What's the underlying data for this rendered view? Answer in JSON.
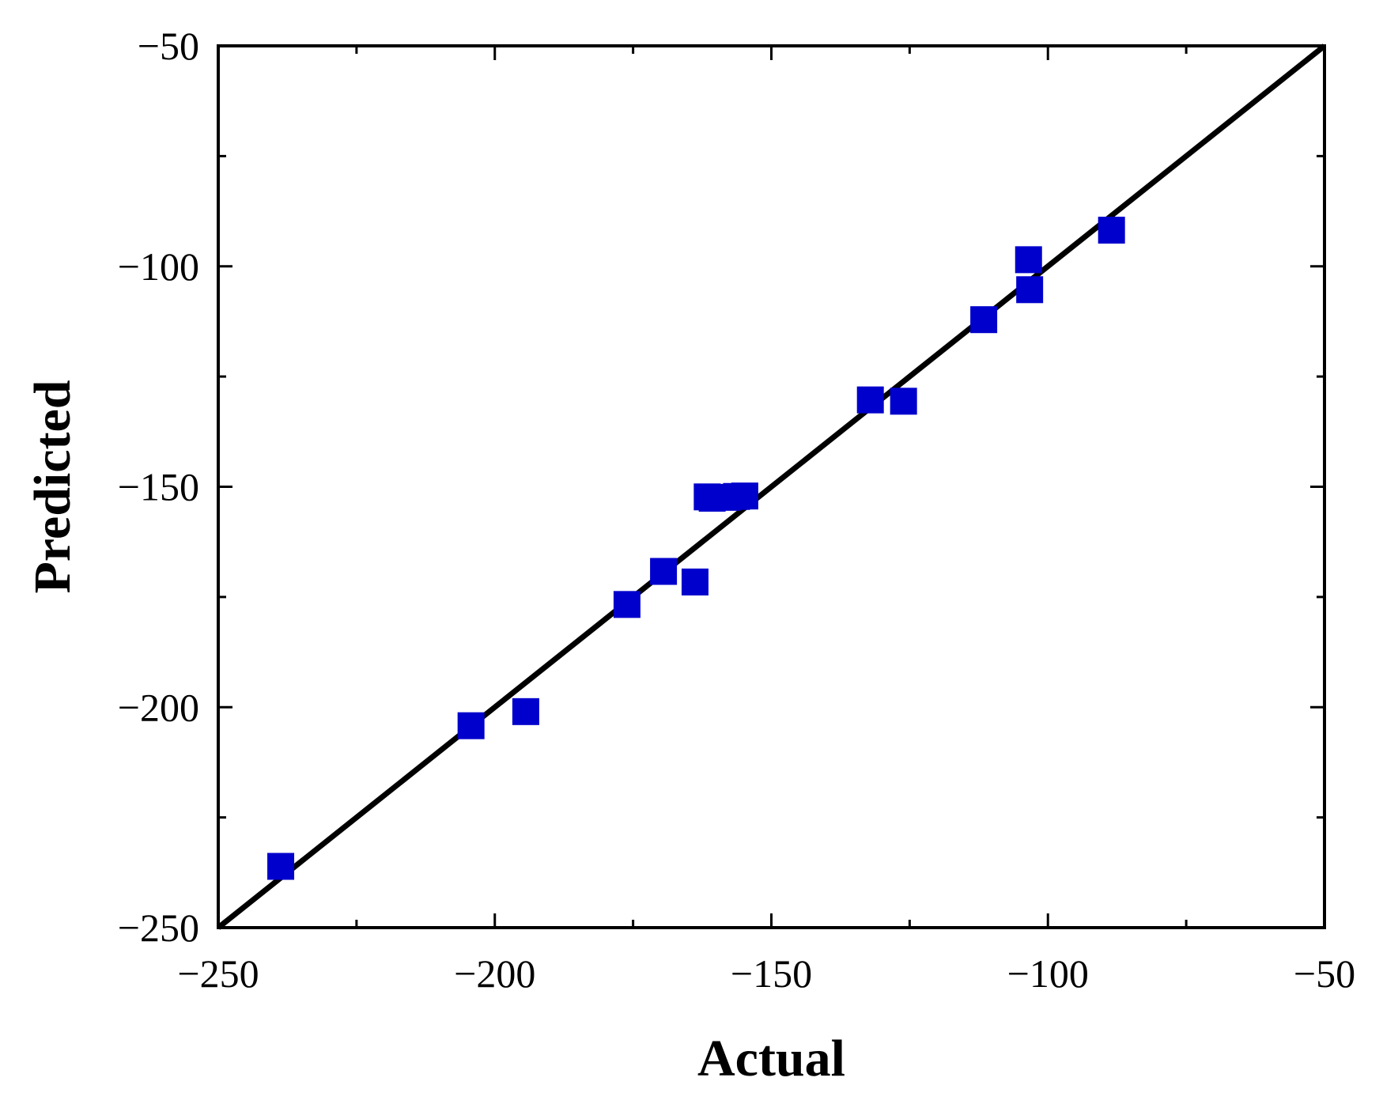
{
  "chart_data": {
    "type": "scatter",
    "title": "",
    "xlabel": "Actual",
    "ylabel": "Predicted",
    "xlim": [
      -250,
      -50
    ],
    "ylim": [
      -250,
      -50
    ],
    "x_ticks": [
      -250,
      -200,
      -150,
      -100,
      -50
    ],
    "y_ticks": [
      -250,
      -200,
      -150,
      -100,
      -50
    ],
    "x_tick_labels": [
      "−250",
      "−200",
      "−150",
      "−100",
      "−50"
    ],
    "y_tick_labels": [
      "−250",
      "−200",
      "−150",
      "−100",
      "−50"
    ],
    "grid": false,
    "legend": "none",
    "reference_line": {
      "from": [
        -250,
        -250
      ],
      "to": [
        -50,
        -50
      ],
      "color": "#000000"
    },
    "marker": {
      "shape": "square",
      "color": "#0000CC"
    },
    "series": [
      {
        "x": [
          -238.7,
          -204.3,
          -194.4,
          -176.1,
          -169.5,
          -163.8,
          -161.6,
          -160.7,
          -158.0,
          -156.3,
          -154.8,
          -132.1,
          -126.1,
          -111.6,
          -103.5,
          -103.3,
          -88.5
        ],
        "y": [
          -236.1,
          -204.2,
          -201.0,
          -176.7,
          -169.2,
          -171.6,
          -152.3,
          -152.6,
          -152.4,
          -152.2,
          -152.1,
          -130.3,
          -130.6,
          -112.1,
          -98.5,
          -105.3,
          -91.8
        ]
      }
    ]
  }
}
